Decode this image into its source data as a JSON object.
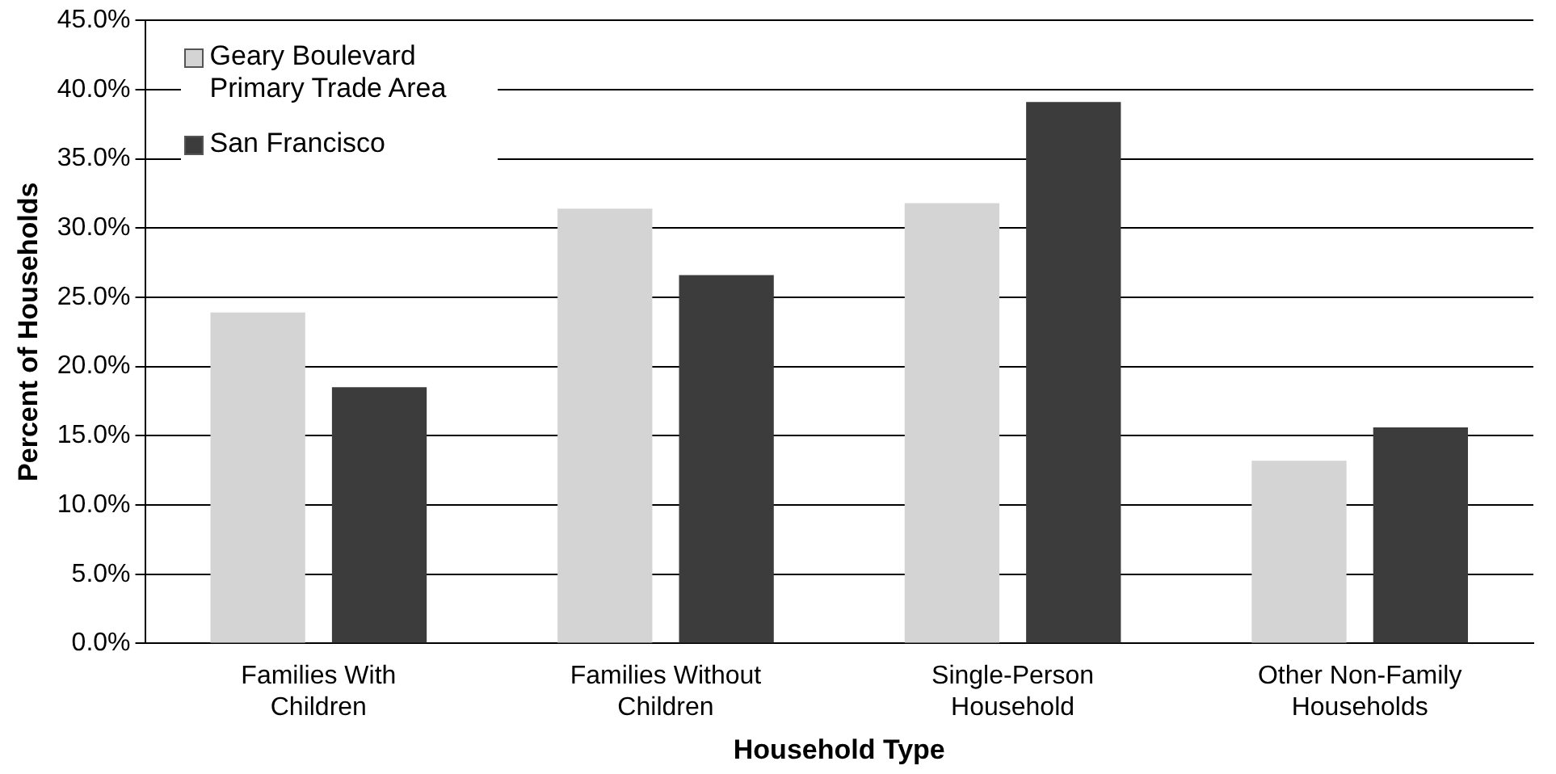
{
  "chart_data": {
    "type": "bar",
    "xlabel": "Household Type",
    "ylabel": "Percent of Households",
    "categories": [
      "Families With Children",
      "Families Without Children",
      "Single-Person Household",
      "Other Non-Family Households"
    ],
    "series": [
      {
        "name": "Geary Boulevard Primary Trade Area",
        "color": "#d4d4d4",
        "values": [
          23.9,
          31.4,
          31.8,
          13.2
        ]
      },
      {
        "name": "San Francisco",
        "color": "#3c3c3c",
        "values": [
          18.5,
          26.6,
          39.1,
          15.6
        ]
      }
    ],
    "ylim": [
      0,
      45
    ],
    "yticks": [
      {
        "value": 0,
        "label": "0.0%"
      },
      {
        "value": 5,
        "label": "5.0%"
      },
      {
        "value": 10,
        "label": "10.0%"
      },
      {
        "value": 15,
        "label": "15.0%"
      },
      {
        "value": 20,
        "label": "20.0%"
      },
      {
        "value": 25,
        "label": "25.0%"
      },
      {
        "value": 30,
        "label": "30.0%"
      },
      {
        "value": 35,
        "label": "35.0%"
      },
      {
        "value": 40,
        "label": "40.0%"
      },
      {
        "value": 45,
        "label": "45.0%"
      }
    ],
    "grid": "y",
    "legend": "top left"
  }
}
